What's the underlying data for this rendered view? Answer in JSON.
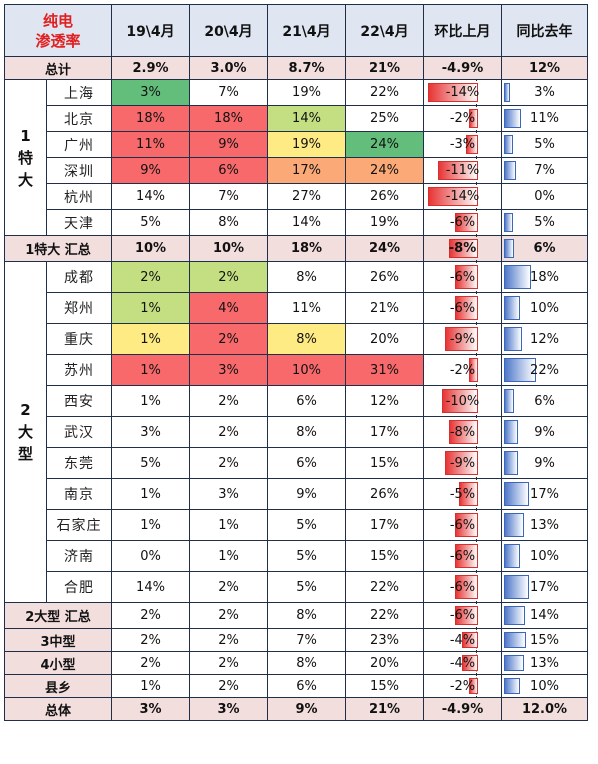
{
  "header": {
    "title_line1": "纯电",
    "title_line2": "渗透率",
    "columns": [
      "19\\4月",
      "20\\4月",
      "21\\4月",
      "22\\4月",
      "环比上月",
      "同比去年"
    ]
  },
  "colors": {
    "red": "#f8696b",
    "orange": "#fbaa77",
    "yellow": "#ffeb84",
    "lightgreen": "#c4df81",
    "green": "#63be7b",
    "sum_bg": "#f3dede",
    "header_bg": "#dfe5f1",
    "neg_bar": "#e83535",
    "pos_bar": "#4f78c9"
  },
  "rows": {
    "total_top": {
      "label": "总计",
      "v": [
        "2.9%",
        "3.0%",
        "8.7%",
        "21%"
      ],
      "mom": "-4.9%",
      "yoy": "12%"
    },
    "tier1": {
      "group_label": "1\n特\n大",
      "cities": [
        {
          "name": "上海",
          "v": [
            "3%",
            "7%",
            "19%",
            "22%"
          ],
          "mom": "-14%",
          "mom_val": -14,
          "yoy": "3%",
          "yoy_val": 3
        },
        {
          "name": "北京",
          "v": [
            "18%",
            "18%",
            "14%",
            "25%"
          ],
          "mom": "-2%",
          "mom_val": -2,
          "yoy": "11%",
          "yoy_val": 11
        },
        {
          "name": "广州",
          "v": [
            "11%",
            "9%",
            "19%",
            "24%"
          ],
          "mom": "-3%",
          "mom_val": -3,
          "yoy": "5%",
          "yoy_val": 5
        },
        {
          "name": "深圳",
          "v": [
            "9%",
            "6%",
            "17%",
            "24%"
          ],
          "mom": "-11%",
          "mom_val": -11,
          "yoy": "7%",
          "yoy_val": 7
        },
        {
          "name": "杭州",
          "v": [
            "14%",
            "7%",
            "27%",
            "26%"
          ],
          "mom": "-14%",
          "mom_val": -14,
          "yoy": "0%",
          "yoy_val": 0
        },
        {
          "name": "天津",
          "v": [
            "5%",
            "8%",
            "14%",
            "19%"
          ],
          "mom": "-6%",
          "mom_val": -6,
          "yoy": "5%",
          "yoy_val": 5
        }
      ],
      "summary": {
        "label": "1特大 汇总",
        "v": [
          "10%",
          "10%",
          "18%",
          "24%"
        ],
        "mom": "-8%",
        "mom_val": -8,
        "yoy": "6%",
        "yoy_val": 6
      }
    },
    "tier2": {
      "group_label": "2\n大\n型",
      "cities": [
        {
          "name": "成都",
          "v": [
            "2%",
            "2%",
            "8%",
            "26%"
          ],
          "mom": "-6%",
          "mom_val": -6,
          "yoy": "18%",
          "yoy_val": 18
        },
        {
          "name": "郑州",
          "v": [
            "1%",
            "4%",
            "11%",
            "21%"
          ],
          "mom": "-6%",
          "mom_val": -6,
          "yoy": "10%",
          "yoy_val": 10
        },
        {
          "name": "重庆",
          "v": [
            "1%",
            "2%",
            "8%",
            "20%"
          ],
          "mom": "-9%",
          "mom_val": -9,
          "yoy": "12%",
          "yoy_val": 12
        },
        {
          "name": "苏州",
          "v": [
            "1%",
            "3%",
            "10%",
            "31%"
          ],
          "mom": "-2%",
          "mom_val": -2,
          "yoy": "22%",
          "yoy_val": 22
        },
        {
          "name": "西安",
          "v": [
            "1%",
            "2%",
            "6%",
            "12%"
          ],
          "mom": "-10%",
          "mom_val": -10,
          "yoy": "6%",
          "yoy_val": 6
        },
        {
          "name": "武汉",
          "v": [
            "3%",
            "2%",
            "8%",
            "17%"
          ],
          "mom": "-8%",
          "mom_val": -8,
          "yoy": "9%",
          "yoy_val": 9
        },
        {
          "name": "东莞",
          "v": [
            "5%",
            "2%",
            "6%",
            "15%"
          ],
          "mom": "-9%",
          "mom_val": -9,
          "yoy": "9%",
          "yoy_val": 9
        },
        {
          "name": "南京",
          "v": [
            "1%",
            "3%",
            "9%",
            "26%"
          ],
          "mom": "-5%",
          "mom_val": -5,
          "yoy": "17%",
          "yoy_val": 17
        },
        {
          "name": "石家庄",
          "v": [
            "1%",
            "1%",
            "5%",
            "17%"
          ],
          "mom": "-6%",
          "mom_val": -6,
          "yoy": "13%",
          "yoy_val": 13
        },
        {
          "name": "济南",
          "v": [
            "0%",
            "1%",
            "5%",
            "15%"
          ],
          "mom": "-6%",
          "mom_val": -6,
          "yoy": "10%",
          "yoy_val": 10
        },
        {
          "name": "合肥",
          "v": [
            "14%",
            "2%",
            "5%",
            "22%"
          ],
          "mom": "-6%",
          "mom_val": -6,
          "yoy": "17%",
          "yoy_val": 17
        }
      ],
      "summary": {
        "label": "2大型 汇总",
        "v": [
          "2%",
          "2%",
          "8%",
          "22%"
        ],
        "mom": "-6%",
        "mom_val": -6,
        "yoy": "14%",
        "yoy_val": 14
      }
    },
    "others": [
      {
        "label": "3中型",
        "v": [
          "2%",
          "2%",
          "7%",
          "23%"
        ],
        "mom": "-4%",
        "mom_val": -4,
        "yoy": "15%",
        "yoy_val": 15
      },
      {
        "label": "4小型",
        "v": [
          "2%",
          "2%",
          "8%",
          "20%"
        ],
        "mom": "-4%",
        "mom_val": -4,
        "yoy": "13%",
        "yoy_val": 13
      },
      {
        "label": "县乡",
        "v": [
          "1%",
          "2%",
          "6%",
          "15%"
        ],
        "mom": "-2%",
        "mom_val": -2,
        "yoy": "10%",
        "yoy_val": 10
      }
    ],
    "total_bottom": {
      "label": "总体",
      "v": [
        "3%",
        "3%",
        "9%",
        "21%"
      ],
      "mom": "-4.9%",
      "yoy": "12.0%"
    }
  }
}
